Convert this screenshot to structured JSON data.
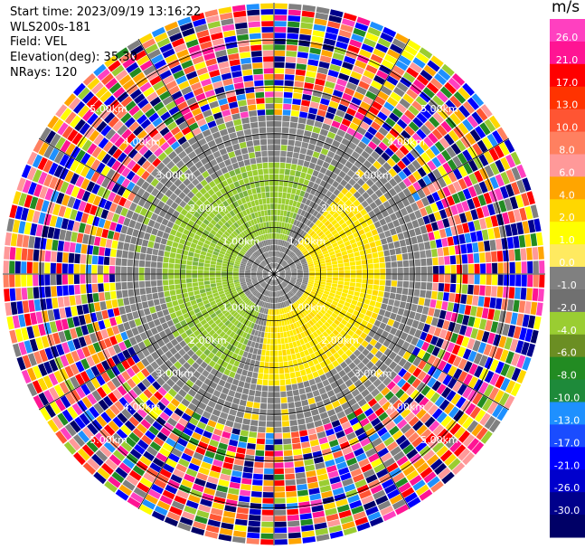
{
  "info": {
    "start_time": "Start time: 2023/09/19 13:16:22",
    "site": "WLS200s-181",
    "field": "Field: VEL",
    "elevation": "Elevation(deg): 35.30",
    "nrays": "NRays: 120"
  },
  "chart_data": {
    "type": "heatmap",
    "projection": "polar-ppi",
    "field": "VEL",
    "nrays": 120,
    "range_rings_km": [
      1.0,
      2.0,
      3.0,
      4.0,
      5.0
    ],
    "range_ring_labels": [
      "1.00km",
      "2.00km",
      "3.00km",
      "4.00km",
      "5.00km"
    ],
    "spokes_deg": [
      0,
      30,
      60,
      90,
      120,
      150,
      180,
      210,
      240,
      270,
      300,
      330
    ],
    "max_range_km": 5.8,
    "colorbar": {
      "unit": "m/s",
      "tick_labels": [
        "26.0",
        "21.0",
        "17.0",
        "13.0",
        "10.0",
        "8.0",
        "6.0",
        "4.0",
        "2.0",
        "1.0",
        "0.0",
        "-1.0",
        "-2.0",
        "-4.0",
        "-6.0",
        "-8.0",
        "-10.0",
        "-13.0",
        "-17.0",
        "-21.0",
        "-26.0",
        "-30.0"
      ],
      "colors": [
        "#ff40c0",
        "#ff1493",
        "#ff0000",
        "#ff3300",
        "#ff5533",
        "#ff8060",
        "#ff9999",
        "#ffa500",
        "#ffd700",
        "#ffff00",
        "#ffea60",
        "#808080",
        "#707070",
        "#9acd32",
        "#6b8e23",
        "#228b22",
        "#1e8a3a",
        "#1e90ff",
        "#1a4cff",
        "#0000ff",
        "#0000cd",
        "#00008b",
        "#000066"
      ]
    },
    "pattern": {
      "inner_noise_free_range_km": 3.4,
      "near_zero_positive_sector_deg": [
        30,
        200
      ],
      "near_zero_negative_sector_deg": [
        200,
        30
      ]
    }
  }
}
